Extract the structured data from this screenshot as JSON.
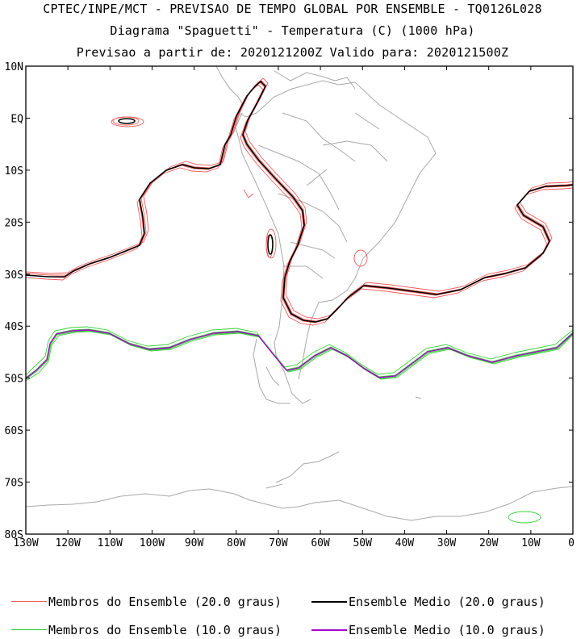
{
  "titles": {
    "line1": "CPTEC/INPE/MCT - PREVISAO DE TEMPO GLOBAL POR ENSEMBLE - TQ0126L028",
    "line2": "Diagrama \"Spaguetti\" - Temperatura (C) (1000 hPa)",
    "line3": "Previsao a partir de: 2020121200Z  Valido para: 2020121500Z"
  },
  "axes": {
    "lon_labels": [
      "130W",
      "120W",
      "110W",
      "100W",
      "90W",
      "80W",
      "70W",
      "60W",
      "50W",
      "40W",
      "30W",
      "20W",
      "10W",
      "0"
    ],
    "lat_labels": [
      "10N",
      "EQ",
      "10S",
      "20S",
      "30S",
      "40S",
      "50S",
      "60S",
      "70S",
      "80S"
    ]
  },
  "colors": {
    "member_20": "#f04848",
    "mean_20": "#000000",
    "member_10": "#22cc22",
    "mean_10": "#aa00cc",
    "coast": "#a8a8a8"
  },
  "legend": [
    {
      "label": "Membros do Ensemble (20.0 graus)",
      "color": "#f06060"
    },
    {
      "label": "Ensemble Medio (20.0 graus)",
      "color": "#000000"
    },
    {
      "label": "Membros do Ensemble (10.0 graus)",
      "color": "#22cc22"
    },
    {
      "label": "Ensemble Medio (10.0 graus)",
      "color": "#aa00cc"
    }
  ]
}
